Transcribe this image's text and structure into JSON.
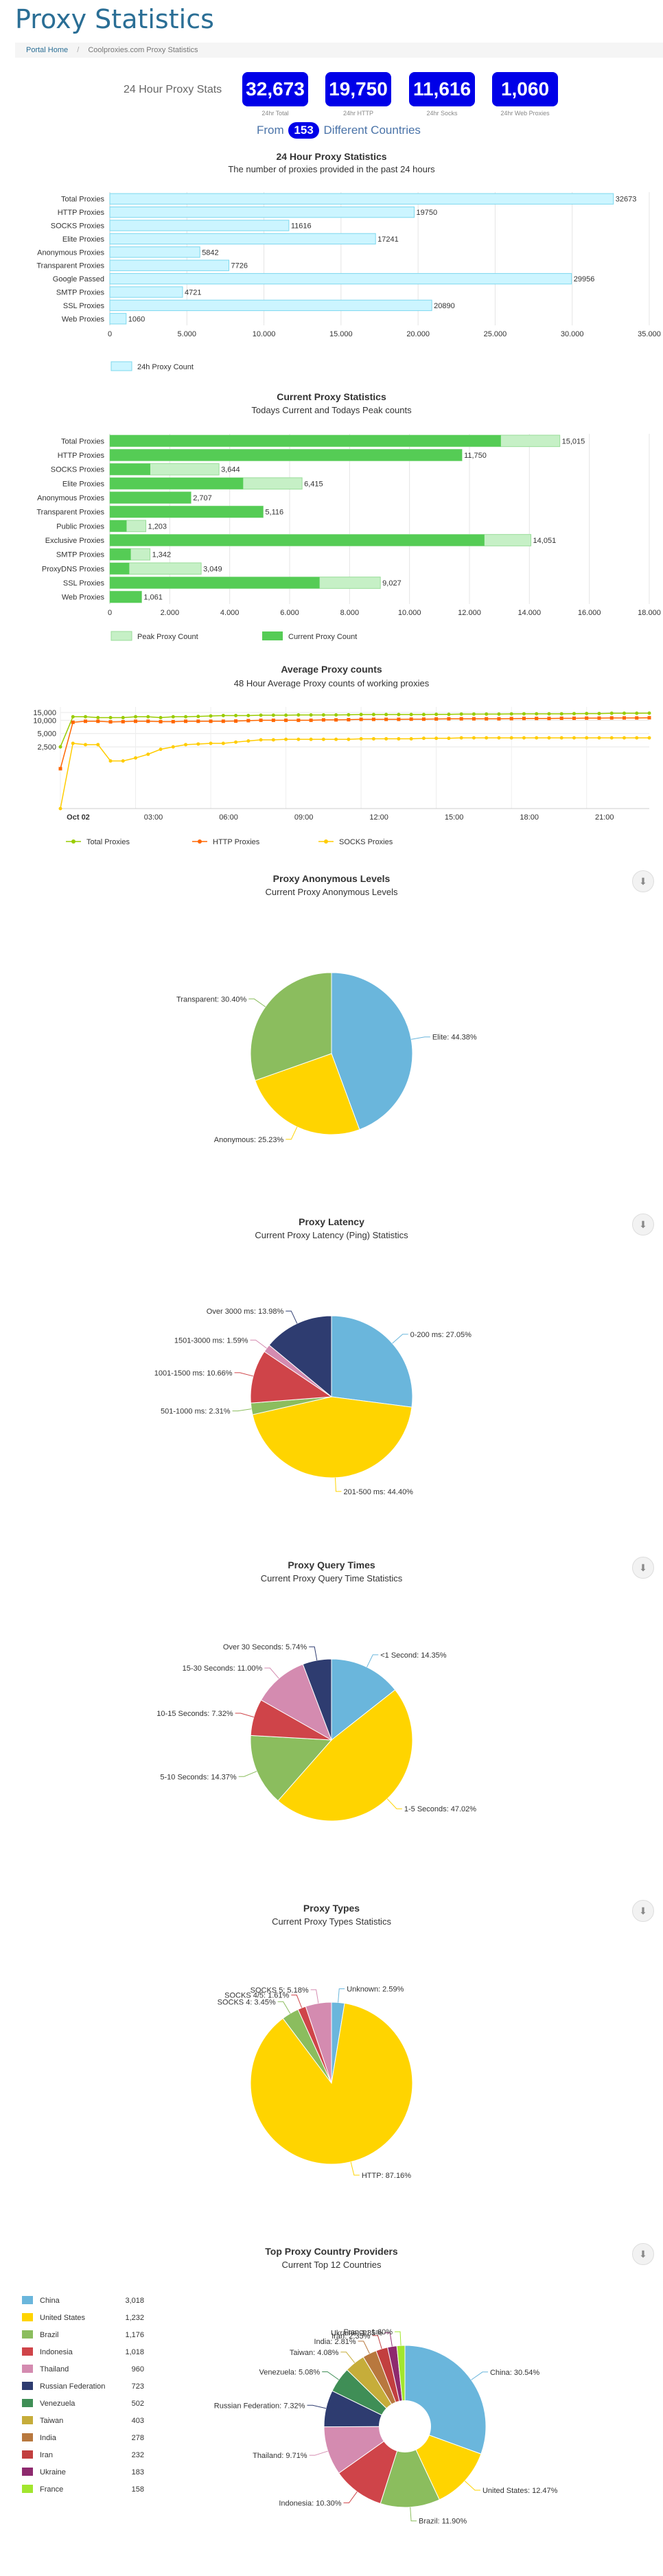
{
  "page": {
    "title": "Proxy Statistics"
  },
  "breadcrumb": {
    "home": "Portal Home",
    "current": "Coolproxies.com Proxy Statistics"
  },
  "stats": {
    "label": "24 Hour Proxy Stats",
    "items": [
      {
        "value": "32,673",
        "caption": "24hr Total"
      },
      {
        "value": "19,750",
        "caption": "24hr HTTP"
      },
      {
        "value": "11,616",
        "caption": "24hr Socks"
      },
      {
        "value": "1,060",
        "caption": "24hr Web Proxies"
      }
    ],
    "from_prefix": "From",
    "countries_count": "153",
    "from_suffix": "Different Countries"
  },
  "colors": {
    "cyan_bar": "#ccf5ff",
    "cyan_stroke": "#7dd8ee",
    "green": "#55cc55",
    "light_green": "#c6f0c6",
    "blue_pill": "#0000e8",
    "title": "#2a6e95"
  },
  "chart_data": [
    {
      "type": "bar",
      "orientation": "horizontal",
      "title": "24 Hour Proxy Statistics",
      "subtitle": "The number of proxies provided in the past 24 hours",
      "categories": [
        "Total Proxies",
        "HTTP Proxies",
        "SOCKS Proxies",
        "Elite Proxies",
        "Anonymous Proxies",
        "Transparent Proxies",
        "Google Passed",
        "SMTP Proxies",
        "SSL Proxies",
        "Web Proxies"
      ],
      "series": [
        {
          "name": "24h Proxy Count",
          "values": [
            32673,
            19750,
            11616,
            17241,
            5842,
            7726,
            29956,
            4721,
            20890,
            1060
          ]
        }
      ],
      "xlim": [
        0,
        35000
      ],
      "ticks": [
        "0",
        "5.000",
        "10.000",
        "15.000",
        "20.000",
        "25.000",
        "30.000",
        "35.000"
      ],
      "legend": "bottom-left"
    },
    {
      "type": "bar",
      "orientation": "horizontal",
      "title": "Current Proxy Statistics",
      "subtitle": "Todays Current and Todays Peak counts",
      "categories": [
        "Total Proxies",
        "HTTP Proxies",
        "SOCKS Proxies",
        "Elite Proxies",
        "Anonymous Proxies",
        "Transparent Proxies",
        "Public Proxies",
        "Exclusive Proxies",
        "SMTP Proxies",
        "ProxyDNS Proxies",
        "SSL Proxies",
        "Web Proxies"
      ],
      "series": [
        {
          "name": "Peak Proxy Count",
          "values": [
            15015,
            11750,
            3644,
            6415,
            2707,
            5116,
            1203,
            14051,
            1342,
            3049,
            9027,
            1061
          ]
        },
        {
          "name": "Current Proxy Count",
          "values": [
            13050,
            11750,
            1350,
            4450,
            2707,
            5116,
            560,
            12500,
            700,
            650,
            7000,
            1061
          ]
        }
      ],
      "labels": [
        "15,015",
        "11,750",
        "3,644",
        "6,415",
        "2,707",
        "5,116",
        "1,203",
        "14,051",
        "1,342",
        "3,049",
        "9,027",
        "1,061"
      ],
      "xlim": [
        0,
        18000
      ],
      "ticks": [
        "0",
        "2.000",
        "4.000",
        "6.000",
        "8.000",
        "10.000",
        "12.000",
        "14.000",
        "16.000",
        "18.000"
      ],
      "legend": "bottom-left"
    },
    {
      "type": "line",
      "title": "Average Proxy counts",
      "subtitle": "48 Hour Average Proxy counts of working proxies",
      "x_ticks": [
        "Oct 02",
        "03:00",
        "06:00",
        "09:00",
        "12:00",
        "15:00",
        "18:00",
        "21:00"
      ],
      "y_ticks": [
        "15,000",
        "10,000",
        "5,000",
        "2,500"
      ],
      "y_scale": "log",
      "hours_start": 0,
      "series": [
        {
          "name": "Total Proxies",
          "color": "#99cc00",
          "values": [
            2500,
            12000,
            12000,
            11500,
            11500,
            11500,
            12000,
            12000,
            11500,
            12000,
            12000,
            12200,
            12500,
            12800,
            12800,
            12800,
            13000,
            13000,
            13000,
            13200,
            13200,
            13200,
            13200,
            13300,
            13500,
            13500,
            13500,
            13500,
            13500,
            13500,
            13600,
            13600,
            13800,
            13800,
            13800,
            13800,
            13900,
            14000,
            14000,
            14000,
            14000,
            14100,
            14200,
            14200,
            14400,
            14400,
            14400,
            14500
          ]
        },
        {
          "name": "HTTP Proxies",
          "color": "#ff6600",
          "values": [
            800,
            9000,
            9500,
            9500,
            9200,
            9300,
            9500,
            9500,
            9300,
            9300,
            9500,
            9500,
            9500,
            9500,
            9600,
            9800,
            10000,
            10000,
            10000,
            10000,
            10000,
            10200,
            10200,
            10300,
            10500,
            10500,
            10500,
            10500,
            10600,
            10600,
            10700,
            10800,
            10800,
            10800,
            10800,
            10800,
            10900,
            11000,
            11000,
            11000,
            11100,
            11100,
            11200,
            11200,
            11300,
            11300,
            11300,
            11400
          ]
        },
        {
          "name": "SOCKS Proxies",
          "color": "#ffcc00",
          "values": [
            100,
            3000,
            2800,
            2800,
            1200,
            1200,
            1400,
            1700,
            2200,
            2500,
            2800,
            2900,
            3000,
            3000,
            3200,
            3400,
            3600,
            3600,
            3700,
            3700,
            3700,
            3700,
            3700,
            3700,
            3800,
            3800,
            3800,
            3800,
            3800,
            3900,
            3900,
            3900,
            4000,
            4000,
            4000,
            4000,
            4000,
            4000,
            4000,
            4000,
            4000,
            4000,
            4000,
            4000,
            4000,
            4000,
            4000,
            4000
          ]
        }
      ],
      "legend": "bottom-left"
    },
    {
      "type": "pie",
      "title": "Proxy Anonymous Levels",
      "subtitle": "Current Proxy Anonymous Levels",
      "slices": [
        {
          "label": "Elite: 44.38%",
          "value": 44.38,
          "color": "#6ab6dc"
        },
        {
          "label": "Anonymous: 25.23%",
          "value": 25.23,
          "color": "#ffd400"
        },
        {
          "label": "Transparent: 30.40%",
          "value": 30.4,
          "color": "#8bbd5e"
        }
      ]
    },
    {
      "type": "pie",
      "title": "Proxy Latency",
      "subtitle": "Current Proxy Latency (Ping) Statistics",
      "slices": [
        {
          "label": "0-200 ms: 27.05%",
          "value": 27.05,
          "color": "#6ab6dc"
        },
        {
          "label": "201-500 ms: 44.40%",
          "value": 44.4,
          "color": "#ffd400"
        },
        {
          "label": "501-1000 ms: 2.31%",
          "value": 2.31,
          "color": "#8bbd5e"
        },
        {
          "label": "1001-1500 ms: 10.66%",
          "value": 10.66,
          "color": "#cf4449"
        },
        {
          "label": "1501-3000 ms: 1.59%",
          "value": 1.59,
          "color": "#d48bb0"
        },
        {
          "label": "Over 3000 ms: 13.98%",
          "value": 13.98,
          "color": "#2e3c70"
        }
      ]
    },
    {
      "type": "pie",
      "title": "Proxy Query Times",
      "subtitle": "Current Proxy Query Time Statistics",
      "slices": [
        {
          "label": "<1 Second: 14.35%",
          "value": 14.35,
          "color": "#6ab6dc"
        },
        {
          "label": "1-5 Seconds: 47.02%",
          "value": 47.02,
          "color": "#ffd400"
        },
        {
          "label": "5-10 Seconds: 14.37%",
          "value": 14.37,
          "color": "#8bbd5e"
        },
        {
          "label": "10-15 Seconds: 7.32%",
          "value": 7.32,
          "color": "#cf4449"
        },
        {
          "label": "15-30 Seconds: 11.00%",
          "value": 11.0,
          "color": "#d48bb0"
        },
        {
          "label": "Over 30 Seconds: 5.74%",
          "value": 5.74,
          "color": "#2e3c70"
        }
      ]
    },
    {
      "type": "pie",
      "title": "Proxy Types",
      "subtitle": "Current Proxy Types Statistics",
      "slices": [
        {
          "label": "Unknown: 2.59%",
          "value": 2.59,
          "color": "#6ab6dc"
        },
        {
          "label": "HTTP: 87.16%",
          "value": 87.16,
          "color": "#ffd400"
        },
        {
          "label": "SOCKS 4: 3.45%",
          "value": 3.45,
          "color": "#8bbd5e"
        },
        {
          "label": "SOCKS 4/5: 1.61%",
          "value": 1.61,
          "color": "#cf4449"
        },
        {
          "label": "SOCKS 5: 5.18%",
          "value": 5.18,
          "color": "#d48bb0"
        }
      ]
    },
    {
      "type": "pie",
      "donut": true,
      "title": "Top Proxy Country Providers",
      "subtitle": "Current Top 12 Countries",
      "slices": [
        {
          "label": "China: 30.54%",
          "value": 30.54,
          "color": "#6ab6dc"
        },
        {
          "label": "United States: 12.47%",
          "value": 12.47,
          "color": "#ffd400"
        },
        {
          "label": "Brazil: 11.90%",
          "value": 11.9,
          "color": "#8bbd5e"
        },
        {
          "label": "Indonesia: 10.30%",
          "value": 10.3,
          "color": "#cf4449"
        },
        {
          "label": "Thailand: 9.71%",
          "value": 9.71,
          "color": "#d48bb0"
        },
        {
          "label": "Russian Federation: 7.32%",
          "value": 7.32,
          "color": "#2e3c70"
        },
        {
          "label": "Venezuela: 5.08%",
          "value": 5.08,
          "color": "#3f8e56"
        },
        {
          "label": "Taiwan: 4.08%",
          "value": 4.08,
          "color": "#c6ad3a"
        },
        {
          "label": "India: 2.81%",
          "value": 2.81,
          "color": "#b8783e"
        },
        {
          "label": "Iran: 2.35%",
          "value": 2.35,
          "color": "#c23f3f"
        },
        {
          "label": "Ukraine: 1.85%",
          "value": 1.85,
          "color": "#8e2a6e"
        },
        {
          "label": "France: 1.60%",
          "value": 1.6,
          "color": "#a2e62e"
        }
      ],
      "table": [
        {
          "country": "China",
          "count": "3,018"
        },
        {
          "country": "United States",
          "count": "1,232"
        },
        {
          "country": "Brazil",
          "count": "1,176"
        },
        {
          "country": "Indonesia",
          "count": "1,018"
        },
        {
          "country": "Thailand",
          "count": "960"
        },
        {
          "country": "Russian Federation",
          "count": "723"
        },
        {
          "country": "Venezuela",
          "count": "502"
        },
        {
          "country": "Taiwan",
          "count": "403"
        },
        {
          "country": "India",
          "count": "278"
        },
        {
          "country": "Iran",
          "count": "232"
        },
        {
          "country": "Ukraine",
          "count": "183"
        },
        {
          "country": "France",
          "count": "158"
        }
      ]
    }
  ]
}
